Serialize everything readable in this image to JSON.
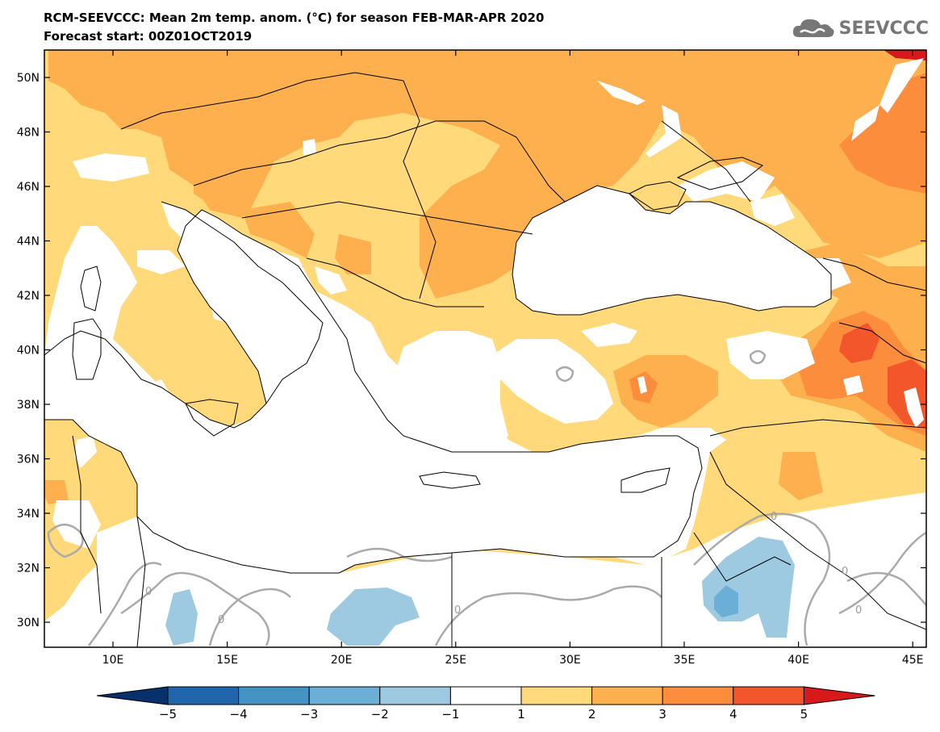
{
  "header": {
    "title": "RCM-SEEVCCC: Mean 2m temp. anom. (°C) for season FEB-MAR-APR 2020",
    "subtitle": "Forecast start: 00Z01OCT2019",
    "logo_text": "SEEVCCC",
    "logo_icon": "cloud-icon"
  },
  "map": {
    "lat_labels": [
      "50N",
      "48N",
      "46N",
      "44N",
      "42N",
      "40N",
      "38N",
      "36N",
      "34N",
      "32N",
      "30N"
    ],
    "lon_labels": [
      "10E",
      "15E",
      "20E",
      "25E",
      "30E",
      "35E",
      "40E",
      "45E"
    ],
    "contour_labels": [
      "0",
      "0",
      "0",
      "0",
      "0",
      "0"
    ]
  },
  "colorbar": {
    "ticks": [
      "−5",
      "−4",
      "−3",
      "−2",
      "−1",
      "1",
      "2",
      "3",
      "4",
      "5"
    ],
    "colors": [
      "#08306b",
      "#2166ac",
      "#4393c3",
      "#6baed6",
      "#9ecae1",
      "#ffffff",
      "#ffd97a",
      "#fdb04d",
      "#fc8d3c",
      "#f4562b",
      "#d7191c"
    ]
  }
}
